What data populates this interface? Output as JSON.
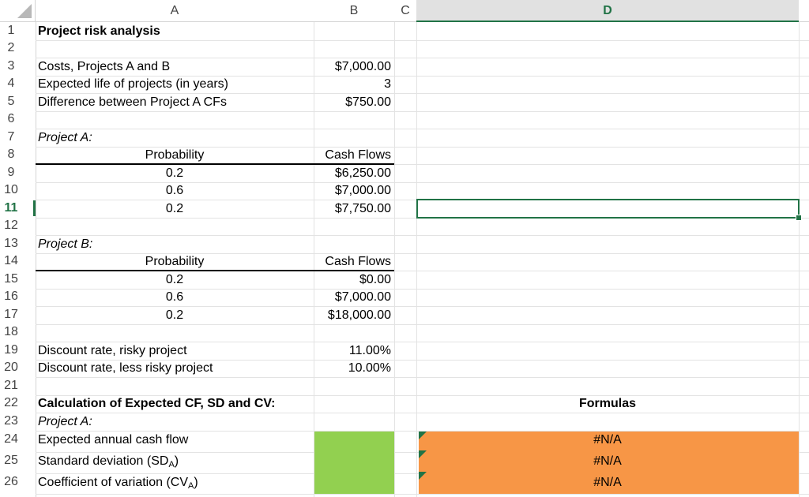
{
  "columns": [
    "A",
    "B",
    "C",
    "D"
  ],
  "selected_column": "D",
  "row_numbers": [
    "1",
    "2",
    "3",
    "4",
    "5",
    "6",
    "7",
    "8",
    "9",
    "10",
    "11",
    "12",
    "13",
    "14",
    "15",
    "16",
    "17",
    "18",
    "19",
    "20",
    "21",
    "22",
    "23",
    "24",
    "25",
    "26"
  ],
  "selected_row": "11",
  "title": "Project risk analysis",
  "inputs": {
    "costs_label": "Costs, Projects A and B",
    "costs_value": "$7,000.00",
    "life_label": "Expected life of projects (in years)",
    "life_value": "3",
    "diff_label": "Difference between Project A CFs",
    "diff_value": "$750.00"
  },
  "project_a": {
    "label": "Project A:",
    "prob_header": "Probability",
    "cf_header": "Cash Flows",
    "rows": [
      {
        "prob": "0.2",
        "cf": "$6,250.00"
      },
      {
        "prob": "0.6",
        "cf": "$7,000.00"
      },
      {
        "prob": "0.2",
        "cf": "$7,750.00"
      }
    ]
  },
  "project_b": {
    "label": "Project B:",
    "prob_header": "Probability",
    "cf_header": "Cash Flows",
    "rows": [
      {
        "prob": "0.2",
        "cf": "$0.00"
      },
      {
        "prob": "0.6",
        "cf": "$7,000.00"
      },
      {
        "prob": "0.2",
        "cf": "$18,000.00"
      }
    ]
  },
  "rates": {
    "risky_label": "Discount rate, risky project",
    "risky_value": "11.00%",
    "less_risky_label": "Discount rate, less risky project",
    "less_risky_value": "10.00%"
  },
  "calc": {
    "heading": "Calculation of Expected CF, SD and CV:",
    "formulas_header": "Formulas",
    "project_label": "Project A:",
    "expected_label": "Expected annual cash flow",
    "sd_label": "Standard deviation (SD",
    "sd_sub": "A",
    "cv_label": "Coefficient of variation (CV",
    "cv_sub": "A",
    "close_paren": ")",
    "expected_formula": "#N/A",
    "sd_formula": "#N/A",
    "cv_formula": "#N/A"
  },
  "colors": {
    "input_fill": "#92d050",
    "formula_fill": "#f79646",
    "selection": "#217346"
  }
}
